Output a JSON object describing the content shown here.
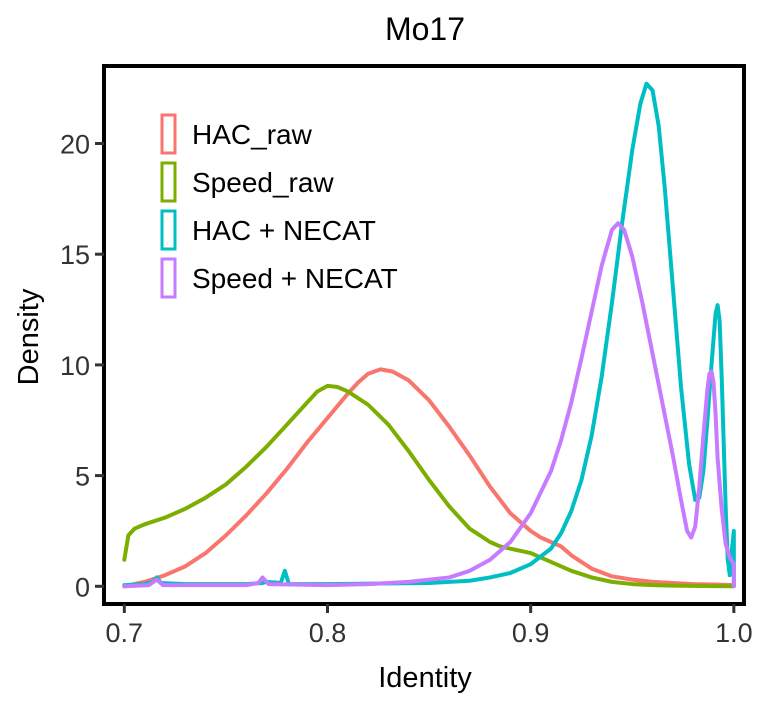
{
  "chart_data": {
    "type": "line",
    "subtype": "density",
    "title": "Mo17",
    "xlabel": "Identity",
    "ylabel": "Density",
    "xlim": [
      0.69,
      1.005
    ],
    "ylim": [
      -0.8,
      23.5
    ],
    "x_ticks": [
      0.7,
      0.8,
      0.9,
      1.0
    ],
    "x_tick_labels": [
      "0.7",
      "0.8",
      "0.9",
      "1.0"
    ],
    "y_ticks": [
      0,
      5,
      10,
      15,
      20
    ],
    "y_tick_labels": [
      "0",
      "5",
      "10",
      "15",
      "20"
    ],
    "grid": false,
    "legend_position": "top-left",
    "series": [
      {
        "name": "HAC_raw",
        "color": "#F8766D",
        "points": [
          [
            0.7,
            0.0
          ],
          [
            0.71,
            0.2
          ],
          [
            0.72,
            0.5
          ],
          [
            0.73,
            0.9
          ],
          [
            0.74,
            1.5
          ],
          [
            0.75,
            2.3
          ],
          [
            0.76,
            3.2
          ],
          [
            0.77,
            4.2
          ],
          [
            0.78,
            5.3
          ],
          [
            0.79,
            6.5
          ],
          [
            0.8,
            7.6
          ],
          [
            0.81,
            8.7
          ],
          [
            0.815,
            9.2
          ],
          [
            0.82,
            9.6
          ],
          [
            0.826,
            9.8
          ],
          [
            0.832,
            9.7
          ],
          [
            0.84,
            9.3
          ],
          [
            0.85,
            8.4
          ],
          [
            0.86,
            7.2
          ],
          [
            0.87,
            5.9
          ],
          [
            0.88,
            4.5
          ],
          [
            0.89,
            3.3
          ],
          [
            0.9,
            2.5
          ],
          [
            0.905,
            2.2
          ],
          [
            0.91,
            2.0
          ],
          [
            0.915,
            1.8
          ],
          [
            0.92,
            1.4
          ],
          [
            0.93,
            0.8
          ],
          [
            0.94,
            0.45
          ],
          [
            0.95,
            0.3
          ],
          [
            0.96,
            0.2
          ],
          [
            0.97,
            0.15
          ],
          [
            0.98,
            0.1
          ],
          [
            0.99,
            0.08
          ],
          [
            1.0,
            0.05
          ]
        ]
      },
      {
        "name": "Speed_raw",
        "color": "#7CAE00",
        "points": [
          [
            0.7,
            1.2
          ],
          [
            0.702,
            2.3
          ],
          [
            0.705,
            2.6
          ],
          [
            0.71,
            2.8
          ],
          [
            0.72,
            3.1
          ],
          [
            0.73,
            3.5
          ],
          [
            0.74,
            4.0
          ],
          [
            0.75,
            4.6
          ],
          [
            0.76,
            5.4
          ],
          [
            0.77,
            6.3
          ],
          [
            0.78,
            7.3
          ],
          [
            0.79,
            8.3
          ],
          [
            0.795,
            8.8
          ],
          [
            0.8,
            9.05
          ],
          [
            0.805,
            9.0
          ],
          [
            0.81,
            8.8
          ],
          [
            0.82,
            8.2
          ],
          [
            0.83,
            7.3
          ],
          [
            0.84,
            6.1
          ],
          [
            0.85,
            4.8
          ],
          [
            0.86,
            3.6
          ],
          [
            0.87,
            2.6
          ],
          [
            0.88,
            2.0
          ],
          [
            0.885,
            1.8
          ],
          [
            0.89,
            1.7
          ],
          [
            0.9,
            1.5
          ],
          [
            0.91,
            1.1
          ],
          [
            0.92,
            0.7
          ],
          [
            0.93,
            0.4
          ],
          [
            0.94,
            0.2
          ],
          [
            0.95,
            0.1
          ],
          [
            0.96,
            0.05
          ],
          [
            0.97,
            0.03
          ],
          [
            0.99,
            0.01
          ],
          [
            1.0,
            0.0
          ]
        ]
      },
      {
        "name": "HAC + NECAT",
        "color": "#00BFC4",
        "points": [
          [
            0.7,
            0.05
          ],
          [
            0.71,
            0.1
          ],
          [
            0.714,
            0.2
          ],
          [
            0.716,
            0.4
          ],
          [
            0.718,
            0.15
          ],
          [
            0.73,
            0.1
          ],
          [
            0.76,
            0.1
          ],
          [
            0.768,
            0.15
          ],
          [
            0.77,
            0.2
          ],
          [
            0.777,
            0.15
          ],
          [
            0.779,
            0.7
          ],
          [
            0.781,
            0.1
          ],
          [
            0.8,
            0.1
          ],
          [
            0.85,
            0.15
          ],
          [
            0.87,
            0.25
          ],
          [
            0.88,
            0.4
          ],
          [
            0.89,
            0.6
          ],
          [
            0.9,
            1.0
          ],
          [
            0.91,
            1.7
          ],
          [
            0.915,
            2.4
          ],
          [
            0.92,
            3.4
          ],
          [
            0.925,
            4.8
          ],
          [
            0.93,
            6.8
          ],
          [
            0.935,
            9.5
          ],
          [
            0.94,
            12.8
          ],
          [
            0.945,
            16.4
          ],
          [
            0.95,
            19.7
          ],
          [
            0.954,
            21.8
          ],
          [
            0.957,
            22.7
          ],
          [
            0.96,
            22.4
          ],
          [
            0.963,
            20.8
          ],
          [
            0.966,
            18.0
          ],
          [
            0.97,
            13.5
          ],
          [
            0.974,
            9.0
          ],
          [
            0.978,
            5.5
          ],
          [
            0.981,
            3.9
          ],
          [
            0.983,
            4.0
          ],
          [
            0.985,
            5.2
          ],
          [
            0.987,
            7.5
          ],
          [
            0.989,
            10.0
          ],
          [
            0.991,
            12.3
          ],
          [
            0.992,
            12.7
          ],
          [
            0.993,
            12.0
          ],
          [
            0.994,
            9.5
          ],
          [
            0.995,
            6.5
          ],
          [
            0.996,
            3.5
          ],
          [
            0.997,
            1.2
          ],
          [
            0.998,
            0.5
          ],
          [
            0.999,
            1.6
          ],
          [
            1.0,
            2.5
          ],
          [
            1.0,
            0.05
          ]
        ]
      },
      {
        "name": "Speed + NECAT",
        "color": "#C77CFF",
        "points": [
          [
            0.7,
            0.0
          ],
          [
            0.712,
            0.05
          ],
          [
            0.716,
            0.3
          ],
          [
            0.719,
            0.05
          ],
          [
            0.76,
            0.05
          ],
          [
            0.766,
            0.15
          ],
          [
            0.768,
            0.4
          ],
          [
            0.771,
            0.1
          ],
          [
            0.8,
            0.05
          ],
          [
            0.82,
            0.1
          ],
          [
            0.84,
            0.2
          ],
          [
            0.86,
            0.4
          ],
          [
            0.87,
            0.7
          ],
          [
            0.88,
            1.2
          ],
          [
            0.89,
            2.0
          ],
          [
            0.9,
            3.3
          ],
          [
            0.91,
            5.2
          ],
          [
            0.915,
            6.6
          ],
          [
            0.92,
            8.3
          ],
          [
            0.925,
            10.3
          ],
          [
            0.93,
            12.4
          ],
          [
            0.935,
            14.5
          ],
          [
            0.94,
            16.1
          ],
          [
            0.943,
            16.4
          ],
          [
            0.946,
            16.1
          ],
          [
            0.95,
            14.9
          ],
          [
            0.955,
            12.8
          ],
          [
            0.96,
            10.5
          ],
          [
            0.965,
            8.2
          ],
          [
            0.97,
            5.9
          ],
          [
            0.974,
            3.9
          ],
          [
            0.977,
            2.5
          ],
          [
            0.979,
            2.2
          ],
          [
            0.981,
            2.7
          ],
          [
            0.983,
            4.5
          ],
          [
            0.985,
            6.8
          ],
          [
            0.987,
            8.9
          ],
          [
            0.988,
            9.6
          ],
          [
            0.989,
            9.7
          ],
          [
            0.99,
            9.2
          ],
          [
            0.991,
            7.8
          ],
          [
            0.992,
            5.8
          ],
          [
            0.994,
            3.5
          ],
          [
            0.996,
            1.9
          ],
          [
            0.998,
            1.3
          ],
          [
            1.0,
            1.0
          ],
          [
            1.0,
            0.0
          ]
        ]
      }
    ]
  }
}
